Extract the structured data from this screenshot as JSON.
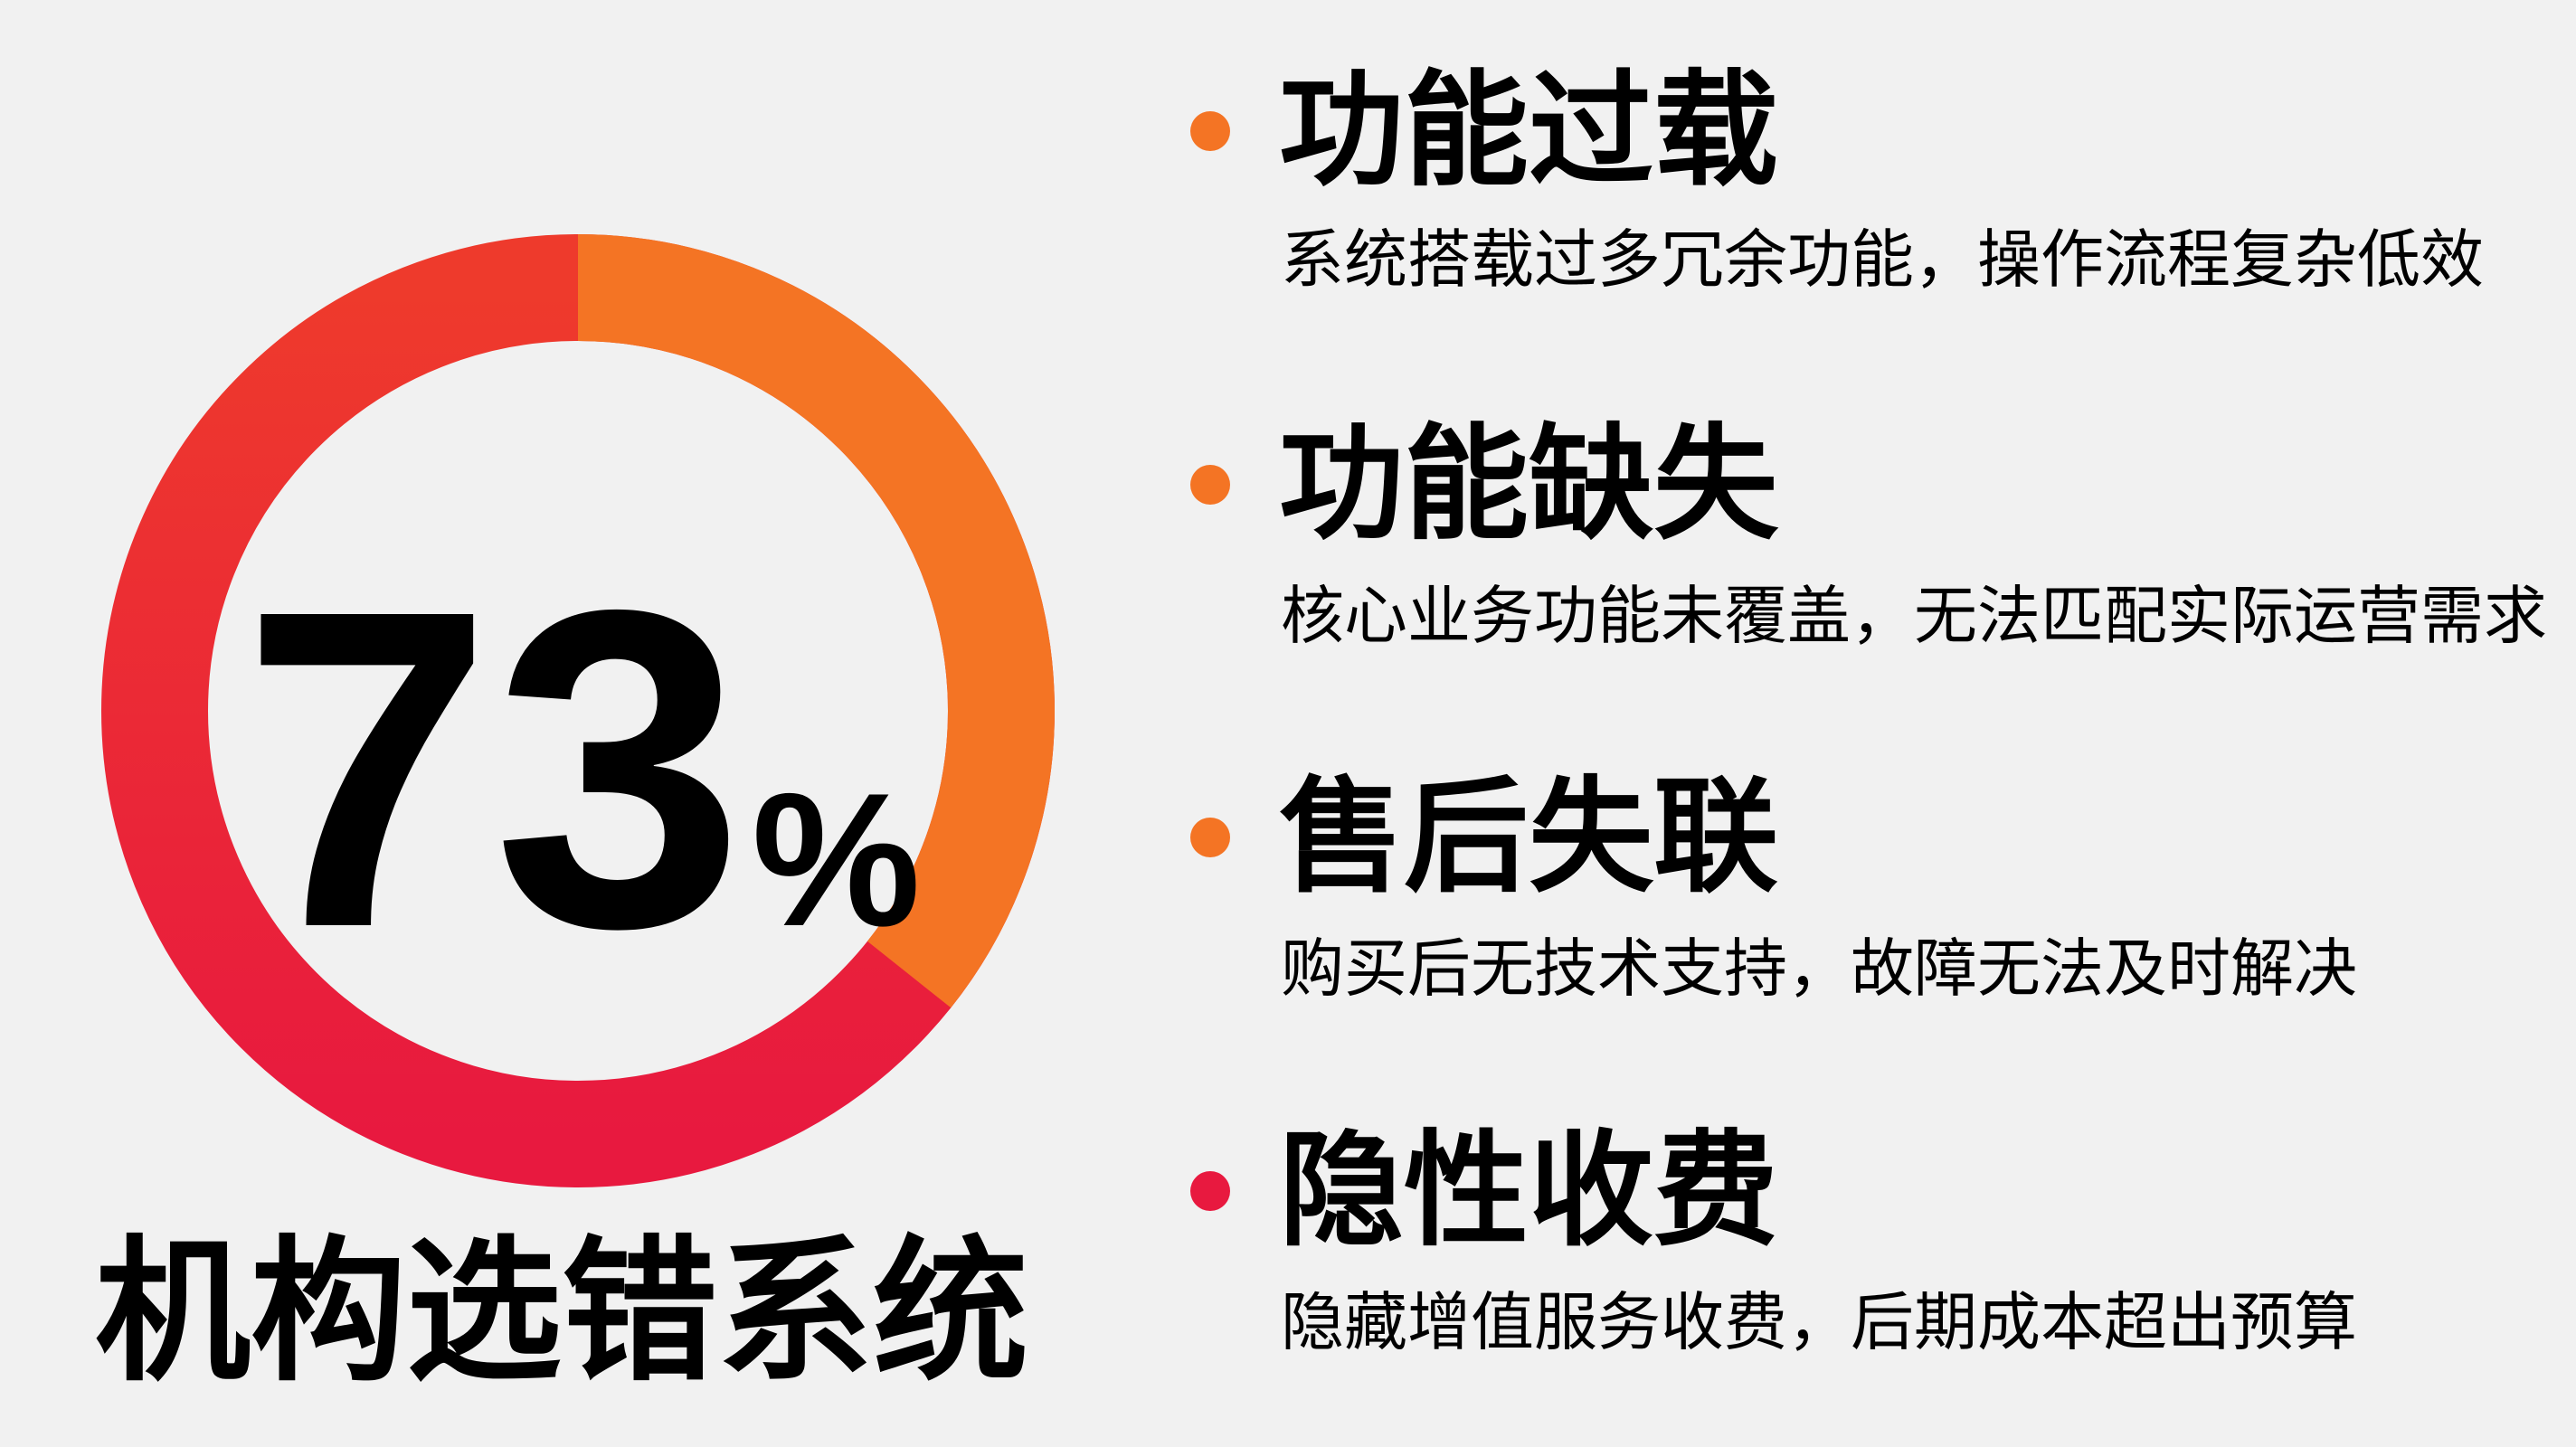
{
  "donut": {
    "percent_value": "73",
    "percent_sign": "%",
    "orange_fraction": 0.357,
    "colors": {
      "orange": "#f47424",
      "red_top": "#ee3a2c",
      "red_bottom": "#e8193f"
    }
  },
  "title": "机构选错系统",
  "items": [
    {
      "heading": "功能过载",
      "description": "系统搭载过多冗余功能，操作流程复杂低效",
      "bullet_color": "#f47424"
    },
    {
      "heading": "功能缺失",
      "description": "核心业务功能未覆盖，无法匹配实际运营需求",
      "bullet_color": "#f47424"
    },
    {
      "heading": "售后失联",
      "description": "购买后无技术支持，故障无法及时解决",
      "bullet_color": "#f47424"
    },
    {
      "heading": "隐性收费",
      "description": "隐藏增值服务收费，后期成本超出预算",
      "bullet_color": "#e8193f"
    }
  ]
}
